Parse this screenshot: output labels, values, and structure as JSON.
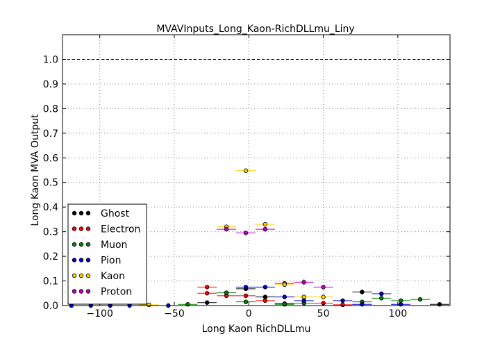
{
  "chart_data": {
    "type": "scatter",
    "title": "MVAVInputs_Long_Kaon-RichDLLmu_Liny",
    "xlabel": "Long Kaon RichDLLmu",
    "ylabel": "Long Kaon MVA Output",
    "xlim": [
      -125,
      135
    ],
    "ylim": [
      0.0,
      1.1
    ],
    "x_ticks": [
      -100,
      -50,
      0,
      50,
      100
    ],
    "x_tick_labels": [
      "−100",
      "−50",
      "0",
      "50",
      "100"
    ],
    "y_ticks": [
      0.0,
      0.1,
      0.2,
      0.3,
      0.4,
      0.5,
      0.6,
      0.7,
      0.8,
      0.9,
      1.0
    ],
    "y_tick_labels": [
      "0.0",
      "0.1",
      "0.2",
      "0.3",
      "0.4",
      "0.5",
      "0.6",
      "0.7",
      "0.8",
      "0.9",
      "1.0"
    ],
    "grid": true,
    "reference_line_y": 1.0,
    "legend_position": "lower-left",
    "series": [
      {
        "name": "Ghost",
        "color": "#000000",
        "points": [
          {
            "x": -28,
            "y": 0.012,
            "xerr": 6.5
          },
          {
            "x": -2,
            "y": 0.068,
            "xerr": 6.5
          },
          {
            "x": 11,
            "y": 0.035,
            "xerr": 6.5
          },
          {
            "x": 24,
            "y": 0.008,
            "xerr": 6.5
          },
          {
            "x": 76,
            "y": 0.055,
            "yerr": 0.01,
            "xerr": 6.5
          },
          {
            "x": 128,
            "y": 0.005,
            "xerr": 6.5
          }
        ]
      },
      {
        "name": "Electron",
        "color": "#ff0000",
        "points": [
          {
            "x": -28,
            "y": 0.075,
            "xerr": 6.5
          },
          {
            "x": -28,
            "y": 0.05,
            "xerr": 6.5
          },
          {
            "x": -15,
            "y": 0.04,
            "xerr": 6.5
          },
          {
            "x": -2,
            "y": 0.04,
            "xerr": 6.5
          },
          {
            "x": 11,
            "y": 0.02,
            "xerr": 6.5
          },
          {
            "x": 24,
            "y": 0.09,
            "xerr": 6.5
          },
          {
            "x": 50,
            "y": 0.01,
            "xerr": 6.5
          },
          {
            "x": 63,
            "y": 0.003,
            "xerr": 6.5
          }
        ]
      },
      {
        "name": "Muon",
        "color": "#008000",
        "points": [
          {
            "x": -41,
            "y": 0.005,
            "xerr": 6.5
          },
          {
            "x": -15,
            "y": 0.052,
            "xerr": 6.5
          },
          {
            "x": -2,
            "y": 0.015,
            "xerr": 6.5
          },
          {
            "x": 24,
            "y": 0.005,
            "xerr": 6.5
          },
          {
            "x": 37,
            "y": 0.01,
            "xerr": 6.5
          },
          {
            "x": 76,
            "y": 0.015,
            "xerr": 6.5
          },
          {
            "x": 89,
            "y": 0.03,
            "xerr": 6.5
          },
          {
            "x": 102,
            "y": 0.02,
            "xerr": 6.5
          },
          {
            "x": 115,
            "y": 0.025,
            "xerr": 6.5
          }
        ]
      },
      {
        "name": "Pion",
        "color": "#0000cc",
        "points": [
          {
            "x": -119,
            "y": 0.0,
            "xerr": 6.5
          },
          {
            "x": -106,
            "y": 0.0,
            "xerr": 6.5
          },
          {
            "x": -93,
            "y": 0.0,
            "xerr": 6.5
          },
          {
            "x": -80,
            "y": 0.0,
            "xerr": 6.5
          },
          {
            "x": -54,
            "y": 0.0,
            "xerr": 6.5
          },
          {
            "x": -2,
            "y": 0.075,
            "xerr": 6.5
          },
          {
            "x": 11,
            "y": 0.075,
            "xerr": 6.5
          },
          {
            "x": 24,
            "y": 0.035,
            "xerr": 6.5
          },
          {
            "x": 37,
            "y": 0.02,
            "xerr": 6.5
          },
          {
            "x": 63,
            "y": 0.02,
            "xerr": 6.5
          },
          {
            "x": 76,
            "y": 0.005,
            "xerr": 6.5
          },
          {
            "x": 89,
            "y": 0.048,
            "xerr": 6.5
          },
          {
            "x": 102,
            "y": 0.005,
            "xerr": 6.5
          }
        ]
      },
      {
        "name": "Kaon",
        "color": "#ffcc00",
        "points": [
          {
            "x": -67,
            "y": 0.003,
            "xerr": 6.5
          },
          {
            "x": -15,
            "y": 0.32,
            "xerr": 6.5
          },
          {
            "x": -2,
            "y": 0.548,
            "xerr": 6.5
          },
          {
            "x": 11,
            "y": 0.33,
            "xerr": 6.5
          },
          {
            "x": 24,
            "y": 0.085,
            "xerr": 6.5
          },
          {
            "x": 37,
            "y": 0.035,
            "xerr": 6.5
          },
          {
            "x": 50,
            "y": 0.035,
            "xerr": 6.5
          }
        ]
      },
      {
        "name": "Proton",
        "color": "#bf00bf",
        "points": [
          {
            "x": -15,
            "y": 0.31,
            "xerr": 6.5
          },
          {
            "x": -2,
            "y": 0.295,
            "xerr": 6.5
          },
          {
            "x": 11,
            "y": 0.31,
            "xerr": 6.5
          },
          {
            "x": 37,
            "y": 0.095,
            "yerr": 0.012,
            "xerr": 6.5
          },
          {
            "x": 50,
            "y": 0.075,
            "xerr": 6.5
          }
        ]
      }
    ]
  }
}
